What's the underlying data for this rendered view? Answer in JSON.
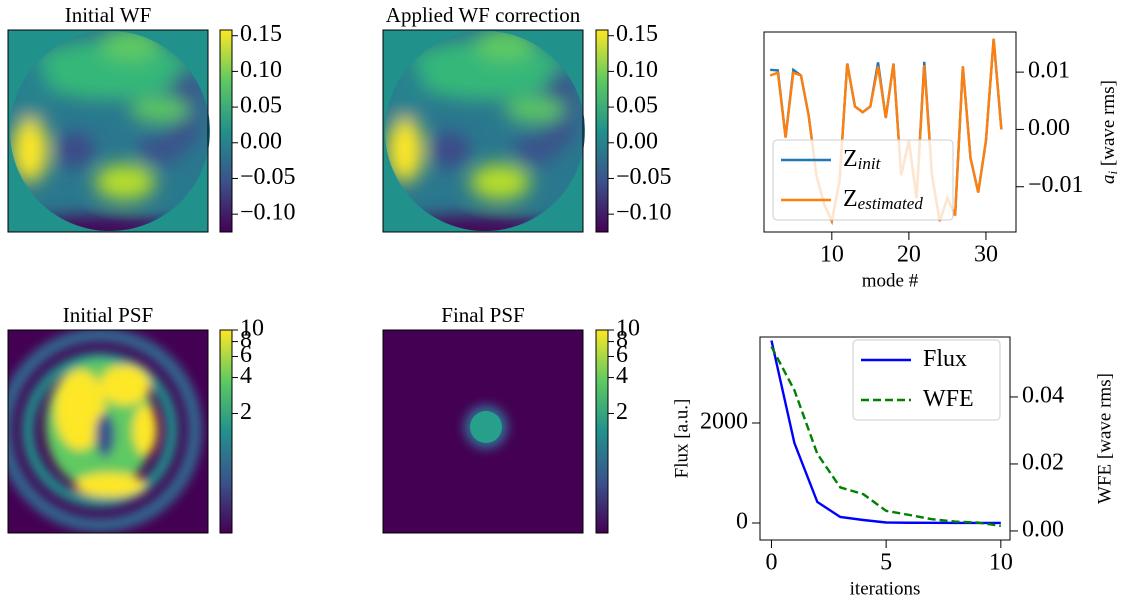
{
  "chart_data": [
    {
      "type": "image",
      "title": "Initial WF",
      "colormap": "viridis",
      "clim": [
        -0.125,
        0.158
      ],
      "cticks": [
        0.15,
        {
          "value": 0.1,
          "label": "0.10"
        },
        0.05,
        {
          "value": 0,
          "label": "0.00"
        },
        {
          "value": -0.05,
          "label": "−0.05"
        },
        {
          "value": -0.1,
          "label": "−0.10"
        }
      ]
    },
    {
      "type": "image",
      "title": "Applied WF correction",
      "colormap": "viridis",
      "clim": [
        -0.125,
        0.158
      ],
      "cticks": [
        0.15,
        {
          "value": 0.1,
          "label": "0.10"
        },
        0.05,
        {
          "value": 0,
          "label": "0.00"
        },
        {
          "value": -0.05,
          "label": "−0.05"
        },
        {
          "value": -0.1,
          "label": "−0.10"
        }
      ]
    },
    {
      "type": "line",
      "x": [
        2,
        3,
        4,
        5,
        6,
        7,
        8,
        9,
        10,
        11,
        12,
        13,
        14,
        15,
        16,
        17,
        18,
        19,
        20,
        21,
        22,
        23,
        24,
        25,
        26,
        27,
        28,
        29,
        30,
        31,
        32
      ],
      "series": [
        {
          "name": "Z",
          "subscript": "init",
          "color": "#1f77b4",
          "values": [
            0.0104,
            0.0103,
            -0.0014,
            0.0104,
            0.0094,
            0.0024,
            -0.008,
            -0.013,
            -0.016,
            -0.009,
            0.0115,
            0.004,
            0.003,
            0.004,
            0.0117,
            0.002,
            0.0115,
            -0.008,
            -0.002,
            -0.012,
            0.0118,
            -0.008,
            -0.016,
            -0.012,
            -0.015,
            0.011,
            -0.005,
            -0.011,
            -0.002,
            0.0158,
            0.0
          ]
        },
        {
          "name": "Z",
          "subscript": "estimated",
          "color": "#ff7f0e",
          "values": [
            0.0094,
            0.0099,
            -0.0014,
            0.0099,
            0.0094,
            0.0024,
            -0.008,
            -0.013,
            -0.016,
            -0.009,
            0.0115,
            0.004,
            0.003,
            0.004,
            0.011,
            0.002,
            0.0115,
            -0.008,
            -0.002,
            -0.012,
            0.0112,
            -0.008,
            -0.016,
            -0.012,
            -0.015,
            0.011,
            -0.005,
            -0.011,
            -0.002,
            0.0158,
            0.0
          ]
        }
      ],
      "xlim": [
        1.2,
        33.9
      ],
      "ylim": [
        -0.0179,
        0.017
      ],
      "xticks": [
        10,
        20,
        30
      ],
      "yticks": [
        {
          "value": -0.01,
          "label": "−0.01"
        },
        {
          "value": 0,
          "label": "0.00"
        },
        0.01
      ],
      "xlabel": "mode #",
      "ylabel_symbol": "a",
      "ylabel_subscript": "i",
      "ylabel_unit": "[wave rms]",
      "yaxis_side": "right",
      "legend": "lower left"
    },
    {
      "type": "image",
      "title": "Initial PSF",
      "colormap": "viridis",
      "cscale": "log",
      "clim": [
        0.2,
        10
      ],
      "cticks": [
        2,
        4,
        6,
        8,
        10
      ]
    },
    {
      "type": "image",
      "title": "Final PSF",
      "colormap": "viridis",
      "cscale": "log",
      "clim": [
        0.2,
        10
      ],
      "cticks": [
        2,
        4,
        6,
        8,
        10
      ]
    },
    {
      "type": "line",
      "x": [
        0,
        1,
        2,
        3,
        4,
        5,
        6,
        7,
        8,
        9,
        10
      ],
      "series": [
        {
          "name": "Flux",
          "color": "#0000ff",
          "values": [
            3650,
            1600,
            420,
            120,
            60,
            10,
            5,
            3,
            2,
            1,
            1
          ]
        },
        {
          "name": "WFE",
          "color": "#008000",
          "linestyle": "dashed",
          "axis": "y2",
          "values": [
            0.055,
            0.042,
            0.023,
            0.013,
            0.011,
            0.006,
            0.0048,
            0.0035,
            0.0028,
            0.0025,
            0.0015
          ]
        }
      ],
      "xlim": [
        -0.5,
        10.4
      ],
      "ylim": [
        -340,
        3720
      ],
      "y2lim": [
        -0.0027,
        0.0579
      ],
      "xticks": [
        0,
        5,
        10
      ],
      "yticks": [
        0,
        2000
      ],
      "y2ticks": [
        {
          "value": 0,
          "label": "0.00"
        },
        0.02,
        0.04
      ],
      "xlabel": "iterations",
      "ylabel": "Flux [a.u.]",
      "ylabel_color": "#0000ff",
      "y2label": "WFE [wave rms]",
      "y2label_color": "#008000",
      "yaxis_side": "left",
      "legend": "upper right"
    }
  ]
}
